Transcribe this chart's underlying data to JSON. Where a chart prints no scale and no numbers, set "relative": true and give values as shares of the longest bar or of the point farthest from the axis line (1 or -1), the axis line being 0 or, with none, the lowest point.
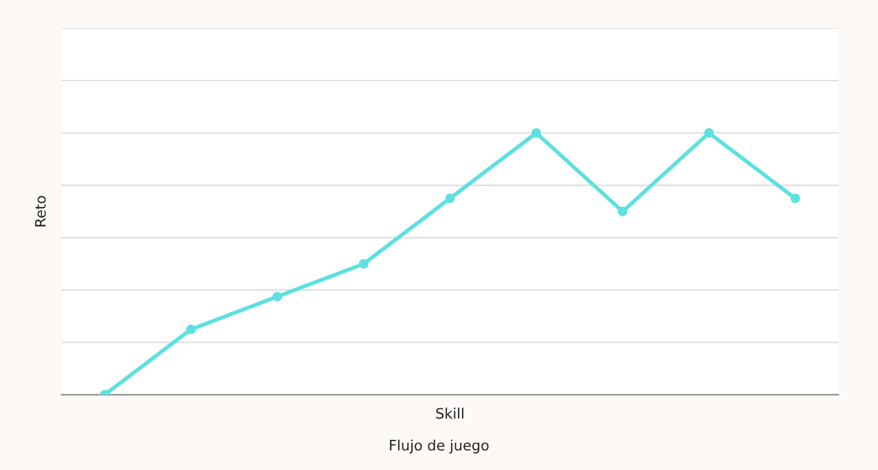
{
  "chart_data": {
    "type": "line",
    "relative": true,
    "categories": [
      null,
      null,
      null,
      null,
      null,
      null,
      null,
      null,
      null
    ],
    "series": [
      {
        "color": "#5ee0e0",
        "values": [
          0,
          0.25,
          0.375,
          0.5,
          0.75,
          1,
          0.7,
          1,
          0.75
        ]
      }
    ],
    "xlabel": "Skill",
    "ylabel": "Reto",
    "annotations": [
      "Flujo de juego"
    ],
    "grid": "y",
    "marker": "circle",
    "line_style": "solid"
  }
}
